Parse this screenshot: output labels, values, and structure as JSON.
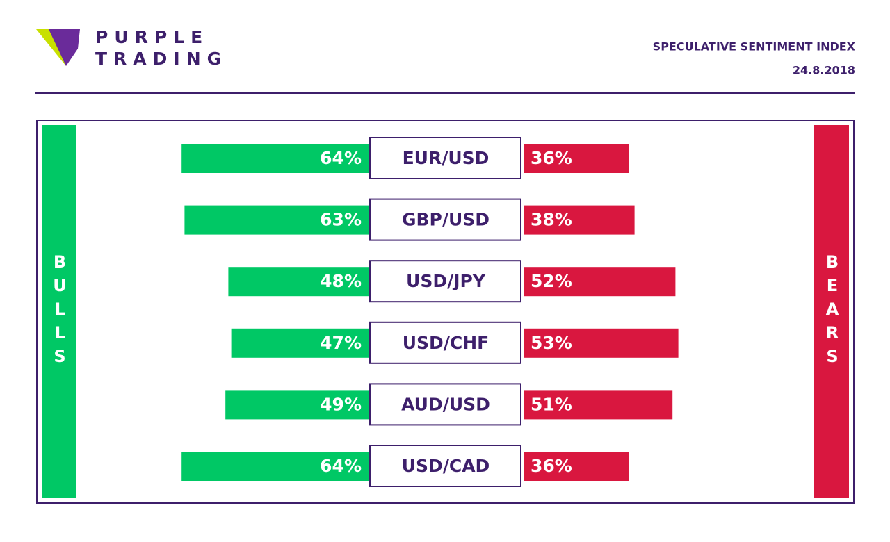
{
  "brand": [
    "PURPLE",
    "TRADING"
  ],
  "chart_data": {
    "type": "bar",
    "title": "SPECULATIVE SENTIMENT INDEX",
    "subtitle": "24.8.2018",
    "categories": [
      "EUR/USD",
      "GBP/USD",
      "USD/JPY",
      "USD/CHF",
      "AUD/USD",
      "USD/CAD"
    ],
    "series": [
      {
        "name": "BULLS",
        "color": "#00c865",
        "values": [
          64,
          63,
          48,
          47,
          49,
          64
        ],
        "value_labels": [
          "64%",
          "63%",
          "48%",
          "47%",
          "49%",
          "64%"
        ]
      },
      {
        "name": "BEARS",
        "color": "#d9173f",
        "values": [
          36,
          38,
          52,
          53,
          51,
          36
        ],
        "value_labels": [
          "36%",
          "38%",
          "52%",
          "53%",
          "51%",
          "36%"
        ]
      }
    ]
  }
}
